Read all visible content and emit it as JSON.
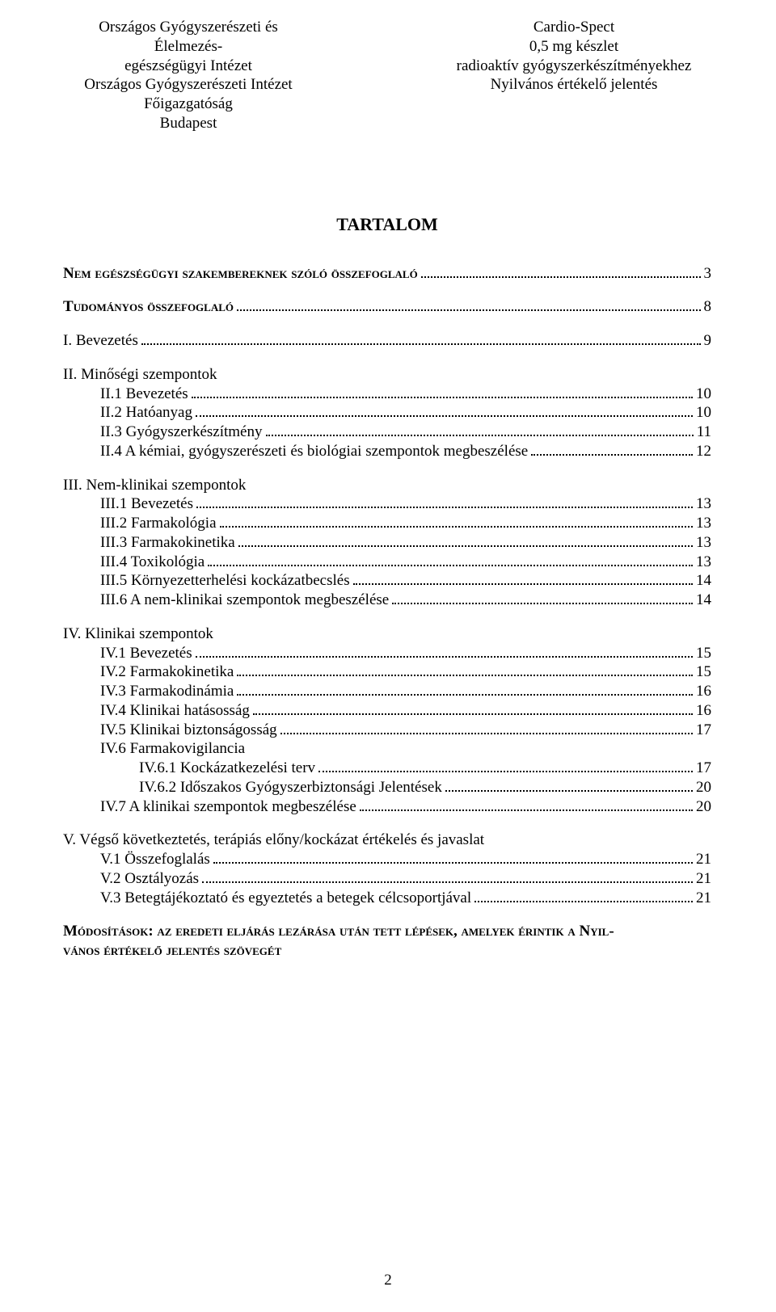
{
  "header": {
    "left": [
      "Országos Gyógyszerészeti és Élelmezés-",
      "egészségügyi Intézet",
      "Országos Gyógyszerészeti Intézet",
      "Főigazgatóság",
      "Budapest"
    ],
    "right": [
      "Cardio-Spect",
      "0,5 mg készlet",
      "radioaktív gyógyszerkészítményekhez",
      "Nyilvános értékelő jelentés"
    ]
  },
  "title": "TARTALOM",
  "toc": [
    {
      "label": "Nem egészségügyi szakembereknek szóló összefoglaló",
      "page": "3",
      "bold": true,
      "smallcaps": true,
      "indent": 0,
      "gapAfter": "md"
    },
    {
      "label": "Tudományos összefoglaló",
      "page": "8",
      "bold": true,
      "smallcaps": true,
      "indent": 0,
      "gapAfter": "md"
    },
    {
      "label": "I. Bevezetés",
      "page": "9",
      "indent": 0,
      "gapAfter": "md"
    },
    {
      "label": "II. Minőségi szempontok",
      "indent": 0,
      "noPage": true
    },
    {
      "label": "II.1 Bevezetés",
      "page": "10",
      "indent": 1
    },
    {
      "label": "II.2 Hatóanyag",
      "page": "10",
      "indent": 1
    },
    {
      "label": "II.3 Gyógyszerkészítmény",
      "page": "11",
      "indent": 1
    },
    {
      "label": "II.4 A kémiai, gyógyszerészeti és biológiai szempontok megbeszélése",
      "page": "12",
      "indent": 1,
      "gapAfter": "md"
    },
    {
      "label": "III. Nem-klinikai szempontok",
      "indent": 0,
      "noPage": true
    },
    {
      "label": "III.1 Bevezetés",
      "page": "13",
      "indent": 1
    },
    {
      "label": "III.2 Farmakológia",
      "page": "13",
      "indent": 1
    },
    {
      "label": "III.3 Farmakokinetika",
      "page": "13",
      "indent": 1
    },
    {
      "label": "III.4 Toxikológia",
      "page": "13",
      "indent": 1
    },
    {
      "label": "III.5 Környezetterhelési kockázatbecslés",
      "page": "14",
      "indent": 1
    },
    {
      "label": "III.6 A nem-klinikai szempontok megbeszélése",
      "page": "14",
      "indent": 1,
      "gapAfter": "md"
    },
    {
      "label": "IV. Klinikai szempontok",
      "indent": 0,
      "noPage": true
    },
    {
      "label": "IV.1 Bevezetés",
      "page": "15",
      "indent": 1
    },
    {
      "label": "IV.2 Farmakokinetika",
      "page": "15",
      "indent": 1
    },
    {
      "label": "IV.3 Farmakodinámia",
      "page": "16",
      "indent": 1
    },
    {
      "label": "IV.4 Klinikai hatásosság",
      "page": "16",
      "indent": 1
    },
    {
      "label": "IV.5 Klinikai biztonságosság",
      "page": "17",
      "indent": 1
    },
    {
      "label": "IV.6 Farmakovigilancia",
      "indent": 1,
      "noPage": true
    },
    {
      "label": "IV.6.1 Kockázatkezelési terv",
      "page": "17",
      "indent": 2
    },
    {
      "label": "IV.6.2 Időszakos Gyógyszerbiztonsági Jelentések",
      "page": "20",
      "indent": 2
    },
    {
      "label": "IV.7 A klinikai szempontok megbeszélése",
      "page": "20",
      "indent": 1,
      "gapAfter": "md"
    },
    {
      "label": "V. Végső következtetés, terápiás előny/kockázat értékelés és javaslat",
      "indent": 0,
      "noPage": true
    },
    {
      "label": "V.1 Összefoglalás",
      "page": "21",
      "indent": 1
    },
    {
      "label": "V.2 Osztályozás",
      "page": "21",
      "indent": 1
    },
    {
      "label": "V.3 Betegtájékoztató és egyeztetés a betegek célcsoportjával",
      "page": "21",
      "indent": 1
    }
  ],
  "appendix": [
    "Módosítások: az eredeti eljárás lezárása után tett lépések, amelyek érintik a Nyil-",
    "vános értékelő jelentés szövegét"
  ],
  "pageNumber": "2"
}
